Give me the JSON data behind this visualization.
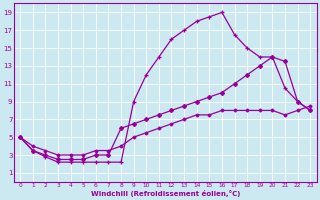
{
  "xlabel": "Windchill (Refroidissement éolien,°C)",
  "background_color": "#cce8f0",
  "line_color": "#990099",
  "grid_color": "#ffffff",
  "xlim": [
    -0.5,
    23.5
  ],
  "ylim": [
    0,
    20
  ],
  "xticks": [
    0,
    1,
    2,
    3,
    4,
    5,
    6,
    7,
    8,
    9,
    10,
    11,
    12,
    13,
    14,
    15,
    16,
    17,
    18,
    19,
    20,
    21,
    22,
    23
  ],
  "yticks": [
    1,
    3,
    5,
    7,
    9,
    11,
    13,
    15,
    17,
    19
  ],
  "series1_x": [
    0,
    1,
    2,
    3,
    4,
    5,
    6,
    7,
    8,
    9,
    10,
    11,
    12,
    13,
    14,
    15,
    16,
    17,
    18,
    19,
    20,
    21,
    22,
    23
  ],
  "series1_y": [
    5.0,
    3.5,
    2.8,
    2.2,
    2.2,
    2.2,
    2.2,
    2.2,
    2.2,
    9.0,
    12.0,
    14.0,
    16.0,
    17.0,
    18.0,
    18.5,
    19.0,
    16.5,
    15.0,
    14.0,
    14.0,
    10.5,
    9.0,
    8.0
  ],
  "series2_x": [
    0,
    1,
    2,
    3,
    4,
    5,
    6,
    7,
    8,
    9,
    10,
    11,
    12,
    13,
    14,
    15,
    16,
    17,
    18,
    19,
    20,
    21,
    22,
    23
  ],
  "series2_y": [
    5.0,
    3.5,
    3.0,
    2.5,
    2.5,
    2.5,
    3.0,
    3.0,
    6.0,
    6.5,
    7.0,
    7.5,
    8.0,
    8.5,
    9.0,
    9.5,
    10.0,
    11.0,
    12.0,
    13.0,
    14.0,
    13.5,
    9.0,
    8.0
  ],
  "series3_x": [
    0,
    1,
    2,
    3,
    4,
    5,
    6,
    7,
    8,
    9,
    10,
    11,
    12,
    13,
    14,
    15,
    16,
    17,
    18,
    19,
    20,
    21,
    22,
    23
  ],
  "series3_y": [
    5.0,
    4.0,
    3.5,
    3.0,
    3.0,
    3.0,
    3.5,
    3.5,
    4.0,
    5.0,
    5.5,
    6.0,
    6.5,
    7.0,
    7.5,
    7.5,
    8.0,
    8.0,
    8.0,
    8.0,
    8.0,
    7.5,
    8.0,
    8.5
  ]
}
